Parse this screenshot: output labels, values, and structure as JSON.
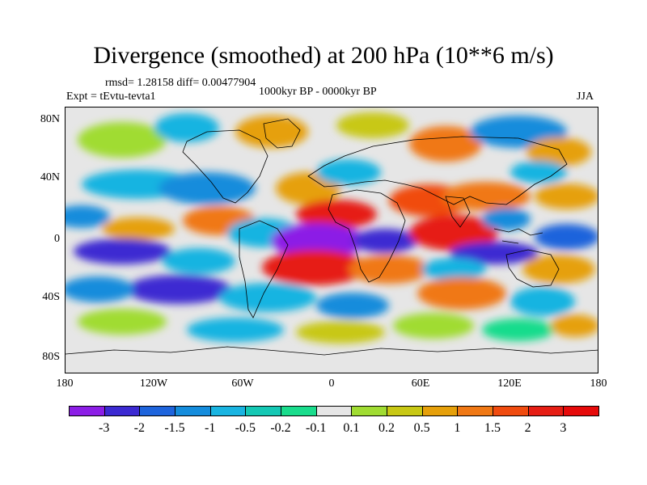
{
  "title": "Divergence (smoothed) at 200 hPa (10**6 m/s)",
  "stats": "rmsd= 1.28158 diff= 0.00477904",
  "experiment": "Expt = tEvtu-tevta1",
  "period": "1000kyr BP - 0000kyr BP",
  "season": "JJA",
  "lat_ticks": [
    "80N",
    "40N",
    "0",
    "40S",
    "80S"
  ],
  "lon_ticks": [
    "180",
    "120W",
    "60W",
    "0",
    "60E",
    "120E",
    "180"
  ],
  "colorbar": {
    "labels": [
      "-3",
      "-2",
      "-1.5",
      "-1",
      "-0.5",
      "-0.2",
      "-0.1",
      "0.1",
      "0.2",
      "0.5",
      "1",
      "1.5",
      "2",
      "3"
    ],
    "colors": [
      "#8c1ee6",
      "#3c2ad2",
      "#1e64dc",
      "#148cdc",
      "#19b4e1",
      "#14c8b4",
      "#19dc8c",
      "#e6e6e6",
      "#a0dc32",
      "#c8c814",
      "#e6a00a",
      "#f07814",
      "#f04b0f",
      "#e61e14",
      "#e60a0a"
    ]
  },
  "colors": {
    "neutral": "#e6e6e6",
    "coast": "#000000"
  }
}
